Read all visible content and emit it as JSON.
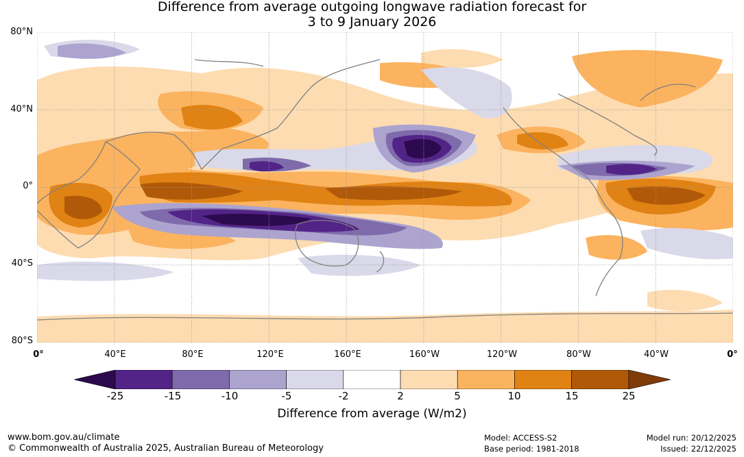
{
  "title": {
    "line1": "Difference from average outgoing longwave radiation forecast for",
    "line2": "3 to 9 January 2026"
  },
  "map": {
    "lat_labels": [
      "80°N",
      "40°N",
      "0°",
      "40°S",
      "80°S"
    ],
    "lon_labels": [
      "0°",
      "40°E",
      "80°E",
      "120°E",
      "160°E",
      "160°W",
      "120°W",
      "80°W",
      "40°W",
      "0°"
    ]
  },
  "colorbar": {
    "title": "Difference from average (W/m2)",
    "ticks": [
      "-25",
      "-15",
      "-10",
      "-5",
      "-2",
      "2",
      "5",
      "10",
      "15",
      "25"
    ],
    "colors": {
      "lt_m25": "#2d0a4d",
      "m25_m15": "#522487",
      "m15_m10": "#7f6bab",
      "m10_m5": "#aca4cf",
      "m5_m2": "#d9d9ea",
      "m2_p2": "#ffffff",
      "p2_p5": "#fddcb1",
      "p5_p10": "#fbb35f",
      "p10_p15": "#e08214",
      "p15_p25": "#b05a09",
      "gt_p25": "#7f3b08"
    }
  },
  "footer": {
    "website": "www.bom.gov.au/climate",
    "copyright": "© Commonwealth of Australia 2025, Australian Bureau of Meteorology",
    "model": "Model: ACCESS-S2",
    "base_period": "Base period: 1981-2018",
    "model_run": "Model run: 20/12/2025",
    "issued": "Issued: 22/12/2025"
  }
}
